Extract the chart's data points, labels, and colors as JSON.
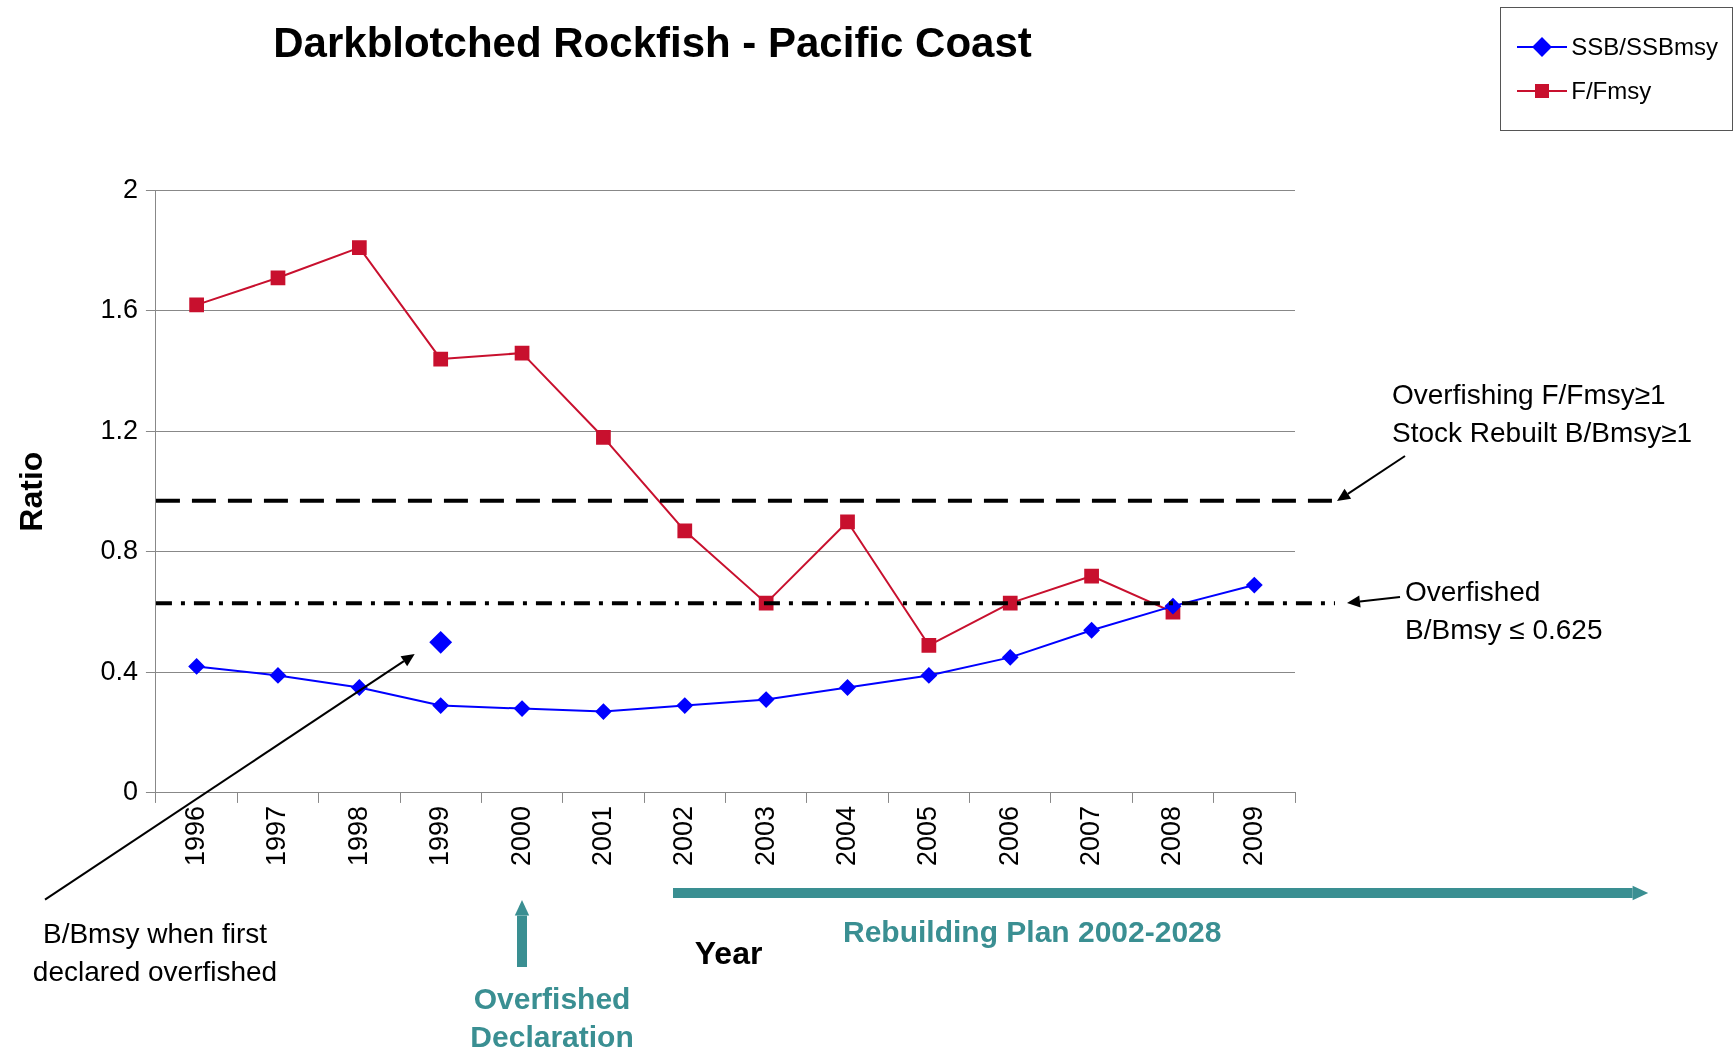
{
  "chart_data": {
    "type": "line",
    "title": "Darkblotched Rockfish - Pacific Coast",
    "xlabel": "Year",
    "ylabel": "Ratio",
    "categories": [
      "1996",
      "1997",
      "1998",
      "1999",
      "2000",
      "2001",
      "2002",
      "2003",
      "2004",
      "2005",
      "2006",
      "2007",
      "2008",
      "2009"
    ],
    "series": [
      {
        "name": "SSB/SSBmsy",
        "color": "#0000ff",
        "marker": "diamond",
        "values": [
          0.42,
          0.39,
          0.35,
          0.29,
          0.28,
          0.27,
          0.29,
          0.31,
          0.35,
          0.39,
          0.45,
          0.54,
          0.62,
          0.69
        ]
      },
      {
        "name": "F/Fmsy",
        "color": "#c8102e",
        "marker": "square",
        "values": [
          1.62,
          1.71,
          1.81,
          1.44,
          1.46,
          1.18,
          0.87,
          0.63,
          0.9,
          0.49,
          0.63,
          0.72,
          0.6,
          null
        ]
      },
      {
        "type": "scatter",
        "color": "#0000ff",
        "marker": "diamond",
        "values": [
          null,
          null,
          null,
          0.5,
          null,
          null,
          null,
          null,
          null,
          null,
          null,
          null,
          null,
          null
        ]
      }
    ],
    "ylim": [
      0,
      2
    ],
    "yticks": [
      0,
      0.4,
      0.8,
      1.2,
      1.6,
      2
    ],
    "grid": "y",
    "legend": "top right",
    "ref_lines": [
      {
        "axis": "y",
        "value": 0.97,
        "label": "Overfishing F/Fmsy≥1\nStock Rebuilt B/Bmsy≥1",
        "color": "#000000",
        "line_style": "dashed"
      },
      {
        "axis": "y",
        "value": 0.63,
        "label": "Overfished\nB/Bmsy ≤ 0.625",
        "color": "#000000",
        "line_style": "dashdot"
      }
    ],
    "annotations": [
      "B/Bmsy when first declared overfished",
      "Overfished Declaration",
      "Rebuilding Plan 2002-2028"
    ]
  }
}
